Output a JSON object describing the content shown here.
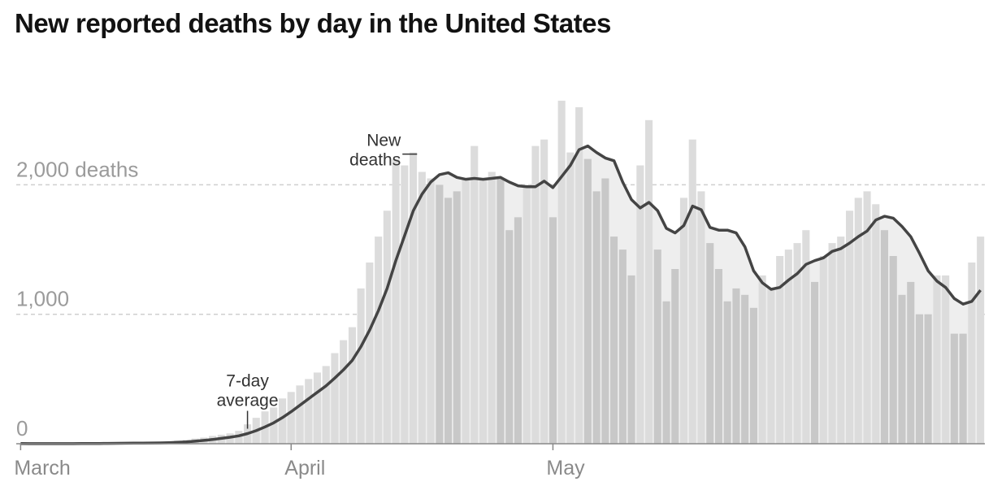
{
  "title": "New reported deaths by day in the United States",
  "colors": {
    "bar_light": "#dcdcdc",
    "bar_dark": "#c8c8c8",
    "avg_area": "#eeeeee",
    "avg_line": "#444444",
    "grid": "#cfcfcf",
    "axis": "#888888"
  },
  "chart_data": {
    "type": "bar",
    "ylim": [
      0,
      2800
    ],
    "y_ticks": [
      {
        "value": 0,
        "label": "0"
      },
      {
        "value": 1000,
        "label": "1,000"
      },
      {
        "value": 2000,
        "label": "2,000 deaths"
      }
    ],
    "x_ticks": [
      {
        "index": 0,
        "label": "March"
      },
      {
        "index": 31,
        "label": "April"
      },
      {
        "index": 61,
        "label": "May"
      }
    ],
    "grid": true,
    "annotations": {
      "bars": [
        "New",
        "deaths"
      ],
      "average": [
        "7-day",
        "average"
      ]
    },
    "series": [
      {
        "type": "bar",
        "values": [
          1,
          0,
          1,
          0,
          1,
          1,
          2,
          3,
          4,
          3,
          5,
          4,
          5,
          6,
          7,
          8,
          10,
          18,
          24,
          30,
          40,
          48,
          60,
          70,
          80,
          100,
          150,
          200,
          250,
          280,
          350,
          400,
          450,
          500,
          550,
          600,
          700,
          800,
          900,
          1200,
          1400,
          1600,
          1800,
          2200,
          2150,
          2250,
          2100,
          2050,
          2000,
          1900,
          1950,
          2050,
          2300,
          2050,
          2100,
          2050,
          1650,
          1750,
          2000,
          2300,
          2350,
          1750,
          2650,
          2250,
          2600,
          2200,
          1950,
          2050,
          1600,
          1500,
          1300,
          2150,
          2500,
          1500,
          1100,
          1350,
          1900,
          2350,
          1950,
          1550,
          1350,
          1100,
          1200,
          1150,
          1050,
          1300,
          1200,
          1450,
          1500,
          1550,
          1650,
          1250,
          1450,
          1550,
          1600,
          1800,
          1900,
          1950,
          1850,
          1650,
          1450,
          1150,
          1250,
          1000,
          1000,
          1300,
          1300,
          850,
          850,
          1400,
          1600
        ],
        "comment_removed": true
      }
    ]
  }
}
